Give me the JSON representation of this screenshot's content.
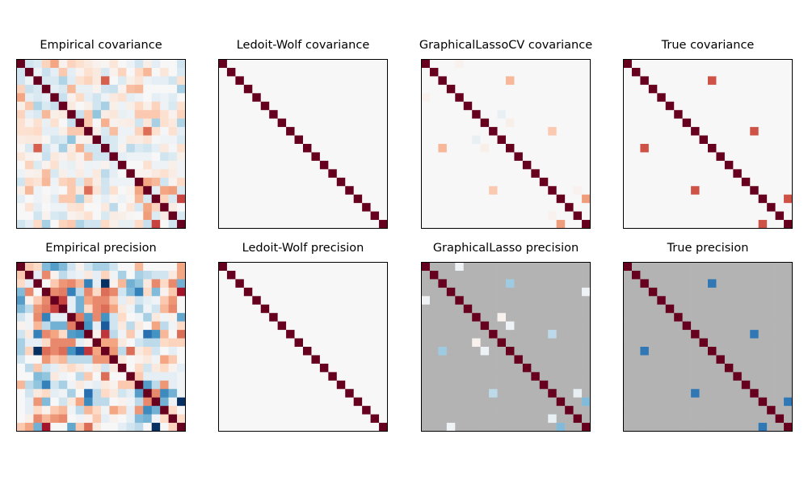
{
  "chart_data": [
    {
      "type": "heatmap",
      "title": "Empirical covariance",
      "colormap": "RdBu_r",
      "scale": "symmetric",
      "size": 20,
      "matrix": [
        [
          1,
          -0.1,
          -0.07,
          0.12,
          0.25,
          0.02,
          0.12,
          0.08,
          0.05,
          0.02,
          0.01,
          0.06,
          0,
          -0.03,
          -0.1,
          0.03,
          -0.05,
          0,
          0,
          -0.1
        ],
        [
          -0.1,
          1,
          -0.03,
          -0.12,
          -0.05,
          0.15,
          -0.05,
          0.02,
          0.08,
          0.05,
          -0.08,
          0.02,
          0.12,
          0,
          0.1,
          0.2,
          0,
          0.06,
          0,
          -0.08
        ],
        [
          -0.1,
          -0.03,
          1,
          -0.08,
          -0.08,
          -0.18,
          -0.06,
          0.08,
          0.12,
          0.05,
          0.5,
          0,
          -0.07,
          0.03,
          0.07,
          -0.03,
          -0.05,
          -0.05,
          -0.1,
          0.08
        ],
        [
          0.12,
          -0.12,
          -0.08,
          1,
          -0.05,
          -0.08,
          0.2,
          -0.04,
          -0.04,
          0.02,
          -0.1,
          -0.12,
          0.02,
          0.18,
          0.2,
          0,
          0,
          0,
          0,
          -0.2
        ],
        [
          0.25,
          -0.05,
          -0.08,
          -0.05,
          1,
          -0.12,
          0.02,
          0.1,
          -0.05,
          -0.1,
          -0.03,
          0.05,
          0.08,
          -0.05,
          -0.03,
          0,
          -0.05,
          -0.03,
          -0.06,
          0
        ],
        [
          0.03,
          0.15,
          -0.18,
          -0.08,
          -0.12,
          1,
          0.05,
          0,
          0.03,
          -0.1,
          -0.2,
          0.03,
          -0.03,
          0.03,
          0.1,
          0.03,
          0.12,
          -0.03,
          -0.08,
          0.08
        ],
        [
          0.12,
          -0.05,
          -0.08,
          0.2,
          0.03,
          0.05,
          1,
          -0.12,
          0.15,
          -0.25,
          0.04,
          0.06,
          -0.04,
          -0.03,
          0.15,
          0.15,
          0.15,
          0.08,
          0.02,
          0.12
        ],
        [
          0.08,
          0.02,
          0.08,
          -0.04,
          0.08,
          0,
          -0.12,
          1,
          0.15,
          0,
          0.22,
          0.02,
          0.03,
          0.04,
          -0.1,
          0.06,
          -0.2,
          0.08,
          0.05,
          -0.18
        ],
        [
          0.08,
          0.08,
          0.1,
          -0.05,
          -0.05,
          0.03,
          0.15,
          0.15,
          1,
          0.03,
          -0.08,
          0.18,
          -0.03,
          -0.03,
          0.12,
          0.45,
          0.08,
          -0.01,
          0.08,
          -0.05
        ],
        [
          0.04,
          0.05,
          0.05,
          0.01,
          -0.1,
          -0.08,
          -0.25,
          0.02,
          0.03,
          1,
          -0.1,
          -0.08,
          -0.02,
          0.05,
          0.04,
          0.07,
          -0.01,
          -0.02,
          -0.02,
          -0.08
        ],
        [
          0.01,
          -0.08,
          0.5,
          -0.1,
          -0.03,
          -0.2,
          0.04,
          0.22,
          -0.1,
          -0.1,
          1,
          -0.08,
          0.02,
          -0.15,
          -0.08,
          -0.1,
          -0.05,
          0.05,
          -0.01,
          0.08
        ],
        [
          0.06,
          0.02,
          0.01,
          -0.12,
          0.05,
          0.02,
          0.06,
          0.02,
          0.18,
          -0.1,
          -0.1,
          1,
          -0.05,
          -0.03,
          -0.03,
          -0.03,
          0,
          -0.1,
          -0.07,
          0.03
        ],
        [
          0,
          0.12,
          -0.07,
          0.02,
          0.08,
          -0.03,
          -0.04,
          0.02,
          -0.03,
          -0.02,
          0.02,
          -0.05,
          1,
          0,
          0,
          0.08,
          -0.03,
          -0.03,
          0.03,
          -0.02
        ],
        [
          -0.03,
          0.02,
          0.03,
          0.18,
          -0.08,
          0.03,
          -0.03,
          0.04,
          -0.03,
          0.05,
          -0.15,
          -0.05,
          0,
          1,
          0.02,
          0.02,
          0.05,
          0.08,
          0.04,
          -0.02
        ],
        [
          -0.1,
          0.1,
          0.07,
          0.2,
          -0.03,
          0.12,
          0.15,
          -0.08,
          0.15,
          0.04,
          -0.1,
          -0.03,
          -0.03,
          -0.03,
          1,
          0.25,
          0.2,
          -0.1,
          0.02,
          0.1
        ],
        [
          0.03,
          0.2,
          -0.03,
          0,
          -0.02,
          0,
          0.15,
          0.05,
          0.45,
          0.07,
          -0.1,
          0.08,
          0,
          0.02,
          0.25,
          1,
          -0.05,
          0.25,
          0.28,
          -0.08
        ],
        [
          -0.05,
          0,
          -0.03,
          0.01,
          -0.06,
          0.15,
          0.15,
          -0.2,
          0.08,
          -0.01,
          -0.05,
          0.01,
          -0.03,
          0.01,
          0.2,
          -0.08,
          1,
          0.12,
          -0.08,
          0.6
        ],
        [
          0,
          0.07,
          -0.05,
          0,
          -0.03,
          -0.03,
          0.07,
          0.08,
          0,
          0,
          0.05,
          -0.15,
          0,
          0.06,
          -0.08,
          0.25,
          0.12,
          1,
          0.04,
          0
        ],
        [
          0,
          0,
          -0.1,
          0.02,
          -0.08,
          -0.1,
          0.02,
          0.04,
          0.08,
          0,
          -0.08,
          0.04,
          0.03,
          0.01,
          0,
          0.28,
          -0.07,
          0.04,
          1,
          -0.08
        ],
        [
          -0.1,
          -0.05,
          0.1,
          -0.2,
          0,
          0.12,
          0.15,
          -0.18,
          -0.1,
          -0.1,
          0.1,
          0.03,
          -0.04,
          -0.04,
          0.1,
          -0.12,
          0.6,
          0,
          -0.1,
          1
        ]
      ]
    },
    {
      "type": "heatmap",
      "title": "Ledoit-Wolf covariance",
      "colormap": "RdBu_r",
      "scale": "symmetric",
      "size": 20,
      "diagonal": 1,
      "off_diagonal": []
    },
    {
      "type": "heatmap",
      "title": "GraphicalLassoCV covariance",
      "colormap": "RdBu_r",
      "scale": "symmetric",
      "size": 20,
      "diagonal": 1,
      "off_diagonal": [
        [
          0,
          4,
          0.02
        ],
        [
          4,
          0,
          0.02
        ],
        [
          2,
          10,
          0.2
        ],
        [
          10,
          2,
          0.2
        ],
        [
          6,
          9,
          -0.04
        ],
        [
          9,
          6,
          -0.04
        ],
        [
          7,
          10,
          0.03
        ],
        [
          10,
          7,
          0.03
        ],
        [
          8,
          15,
          0.15
        ],
        [
          15,
          8,
          0.15
        ],
        [
          15,
          18,
          0.02
        ],
        [
          18,
          15,
          0.02
        ],
        [
          16,
          19,
          0.28
        ],
        [
          19,
          16,
          0.28
        ]
      ]
    },
    {
      "type": "heatmap",
      "title": "True covariance",
      "colormap": "RdBu_r",
      "scale": "symmetric",
      "size": 20,
      "diagonal": 1,
      "off_diagonal": [
        [
          2,
          10,
          0.55
        ],
        [
          10,
          2,
          0.55
        ],
        [
          8,
          15,
          0.55
        ],
        [
          15,
          8,
          0.55
        ],
        [
          16,
          19,
          0.55
        ],
        [
          19,
          16,
          0.55
        ]
      ]
    },
    {
      "type": "heatmap",
      "title": "Empirical precision",
      "colormap": "RdBu_r",
      "scale": "symmetric",
      "size": 20,
      "matrix": [
        [
          1,
          0.15,
          0.1,
          -0.3,
          -0.45,
          -0.3,
          -0.1,
          0.02,
          -0.1,
          -0.2,
          -0.2,
          -0.1,
          0,
          0,
          0.2,
          0,
          0,
          0,
          0,
          0.25
        ],
        [
          0.15,
          1,
          -0.05,
          0.35,
          0.02,
          -0.15,
          -0.05,
          -0.03,
          0.05,
          -0.05,
          0.12,
          -0.02,
          -0.2,
          0,
          -0.2,
          -0.15,
          -0.1,
          -0.1,
          0.05,
          0.25
        ],
        [
          0.1,
          -0.05,
          1,
          0,
          0.15,
          0.3,
          0.35,
          0.2,
          -0.6,
          -0.05,
          -1,
          0.02,
          0.2,
          -0.35,
          -0.25,
          0.05,
          0.35,
          0.1,
          0.35,
          -0.35
        ],
        [
          -0.3,
          0.35,
          0,
          1,
          0.35,
          0.4,
          -0.6,
          -0.15,
          0.35,
          0.1,
          0.45,
          0.35,
          -0.1,
          -0.3,
          -0.6,
          0.1,
          -0.3,
          0.02,
          0.15,
          0.8
        ],
        [
          -0.45,
          0.02,
          0.15,
          0.35,
          1,
          0.6,
          -0.05,
          -0.35,
          0.25,
          0.35,
          0.35,
          0.15,
          -0.05,
          0.05,
          -0.1,
          -0.05,
          -0.02,
          0.15,
          0.3,
          0
        ],
        [
          -0.3,
          -0.15,
          0.3,
          0.4,
          0.6,
          1,
          -0.05,
          -0.35,
          0.1,
          0.35,
          0.45,
          0.25,
          0.05,
          -0.02,
          -0.2,
          -0.02,
          -0.1,
          0.2,
          0.35,
          0
        ],
        [
          -0.1,
          -0.02,
          0.35,
          -0.6,
          -0.05,
          -0.05,
          1,
          0.4,
          -0.45,
          0.35,
          -0.5,
          -0.1,
          0.1,
          0,
          -0.02,
          -0.2,
          0.05,
          -0.02,
          0.02,
          -0.4
        ],
        [
          0.02,
          -0.02,
          0.2,
          -0.15,
          -0.35,
          -0.35,
          0.4,
          1,
          -0.5,
          -0.05,
          -0.8,
          -0.1,
          0.05,
          -0.15,
          0.05,
          0,
          0.25,
          -0.15,
          -0.02,
          0.1
        ],
        [
          -0.1,
          0.05,
          -0.6,
          0.35,
          0.25,
          0.1,
          -0.45,
          -0.5,
          1,
          0.02,
          0.65,
          -0.15,
          -0.02,
          0.15,
          -0.02,
          -0.7,
          -0.5,
          0.2,
          0,
          0.45
        ],
        [
          -0.2,
          -0.05,
          -0.05,
          0.1,
          0.35,
          0.35,
          0.35,
          -0.05,
          0.02,
          1,
          0.25,
          0.25,
          0.05,
          0,
          -0.1,
          -0.15,
          -0.15,
          0.1,
          0.12,
          0.12
        ],
        [
          -0.2,
          0.12,
          -1,
          0.45,
          0.35,
          0.45,
          -0.5,
          -0.8,
          0.65,
          0.25,
          1,
          0.3,
          -0.15,
          0.45,
          0.05,
          0.1,
          -0.1,
          0,
          -0.05,
          0
        ],
        [
          -0.1,
          0,
          0,
          0.3,
          0.15,
          0.2,
          -0.15,
          -0.15,
          -0.15,
          0.3,
          0.3,
          1,
          0.05,
          0,
          0.02,
          0.05,
          -0.02,
          0.25,
          0.15,
          0
        ],
        [
          0,
          -0.15,
          0.15,
          -0.1,
          -0.05,
          0.05,
          0.1,
          0.05,
          -0.02,
          0.05,
          -0.1,
          0.05,
          1,
          0,
          0.1,
          -0.1,
          0.05,
          0.1,
          0.02,
          -0.05
        ],
        [
          0,
          0,
          -0.3,
          -0.25,
          0.05,
          -0.02,
          0,
          -0.15,
          0.15,
          0,
          0.45,
          0,
          0,
          1,
          0.15,
          -0.05,
          -0.05,
          -0.05,
          -0.05,
          -0.02
        ],
        [
          0.2,
          -0.15,
          -0.25,
          -0.6,
          -0.1,
          -0.2,
          -0.02,
          0.05,
          -0.02,
          -0.05,
          0.05,
          0.02,
          0.15,
          0.15,
          1,
          -0.45,
          -0.15,
          0.3,
          -0.05,
          -0.02
        ],
        [
          0,
          -0.1,
          0.05,
          0.1,
          -0.05,
          -0.02,
          -0.2,
          0,
          -0.7,
          -0.15,
          0.1,
          0.05,
          -0.1,
          -0.05,
          -0.45,
          1,
          0.35,
          -0.55,
          -0.35,
          -0.02
        ],
        [
          0,
          -0.05,
          0.3,
          -0.3,
          0,
          -0.1,
          0.05,
          0.25,
          -0.55,
          -0.15,
          -0.15,
          0,
          0.02,
          -0.02,
          -0.15,
          0.35,
          1,
          -0.35,
          -0.02,
          -1
        ],
        [
          0,
          -0.05,
          0.1,
          0.02,
          0.15,
          0.2,
          -0.02,
          -0.15,
          0.2,
          0.1,
          -0.02,
          0.25,
          0.15,
          -0.05,
          0.3,
          -0.55,
          -0.35,
          1,
          0.1,
          0
        ],
        [
          0,
          0.03,
          0.35,
          0.2,
          0.3,
          0.35,
          0,
          -0.02,
          0.02,
          0.15,
          -0.05,
          0.02,
          0,
          -0.05,
          -0.3,
          -0.35,
          -0.02,
          0.1,
          1,
          0.1
        ],
        [
          0.15,
          0.25,
          -0.35,
          0.8,
          0,
          0,
          -0.4,
          0.15,
          0.45,
          0.05,
          0,
          0,
          -0.05,
          -0.1,
          -0.15,
          0,
          -1,
          0,
          0.12,
          1
        ]
      ]
    },
    {
      "type": "heatmap",
      "title": "Ledoit-Wolf precision",
      "colormap": "RdBu_r",
      "scale": "symmetric",
      "size": 20,
      "diagonal": 1,
      "off_diagonal": []
    },
    {
      "type": "heatmap",
      "title": "GraphicalLasso precision",
      "colormap": "RdBu_r",
      "scale": "symmetric",
      "size": 20,
      "diagonal": 1,
      "masked_zero": true,
      "masked_color": "#b3b3b3",
      "off_diagonal": [
        [
          0,
          4,
          -0.02
        ],
        [
          4,
          0,
          -0.02
        ],
        [
          2,
          10,
          -0.22
        ],
        [
          10,
          2,
          -0.22
        ],
        [
          3,
          19,
          -0.02
        ],
        [
          19,
          3,
          -0.02
        ],
        [
          6,
          9,
          0.02
        ],
        [
          9,
          6,
          0.02
        ],
        [
          7,
          10,
          -0.03
        ],
        [
          10,
          7,
          -0.03
        ],
        [
          8,
          15,
          -0.15
        ],
        [
          15,
          8,
          -0.15
        ],
        [
          15,
          18,
          -0.04
        ],
        [
          18,
          15,
          -0.04
        ],
        [
          16,
          19,
          -0.3
        ],
        [
          19,
          16,
          -0.3
        ]
      ]
    },
    {
      "type": "heatmap",
      "title": "True precision",
      "colormap": "RdBu_r",
      "scale": "symmetric",
      "size": 20,
      "diagonal": 1,
      "masked_zero": true,
      "masked_color": "#b3b3b3",
      "off_diagonal": [
        [
          2,
          10,
          -0.65
        ],
        [
          10,
          2,
          -0.65
        ],
        [
          8,
          15,
          -0.65
        ],
        [
          15,
          8,
          -0.65
        ],
        [
          16,
          19,
          -0.65
        ],
        [
          19,
          16,
          -0.65
        ]
      ]
    }
  ]
}
